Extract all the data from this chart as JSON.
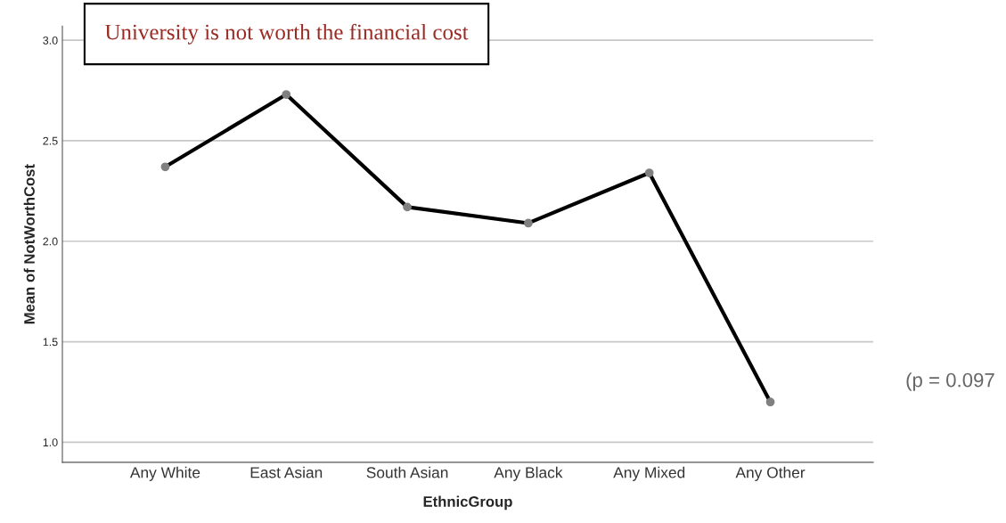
{
  "chart_data": {
    "type": "line",
    "title": "University is not worth the financial cost",
    "xlabel": "EthnicGroup",
    "ylabel": "Mean of NotWorthCost",
    "categories": [
      "Any White",
      "East Asian",
      "South Asian",
      "Any Black",
      "Any Mixed",
      "Any Other"
    ],
    "series": [
      {
        "color": "#000000",
        "values": [
          2.37,
          2.73,
          2.17,
          2.09,
          2.34,
          1.2
        ]
      }
    ],
    "ylim": [
      0.9,
      3.07
    ],
    "yticks": [
      {
        "value": 1.0,
        "label": "1.0"
      },
      {
        "value": 1.5,
        "label": "1.5"
      },
      {
        "value": 2.0,
        "label": "2.0"
      },
      {
        "value": 2.5,
        "label": "2.5"
      },
      {
        "value": 3.0,
        "label": "3.0"
      }
    ],
    "grid": "y",
    "marker": "circle",
    "line_style": "solid",
    "annotations": [
      "(p = 0.097"
    ]
  }
}
